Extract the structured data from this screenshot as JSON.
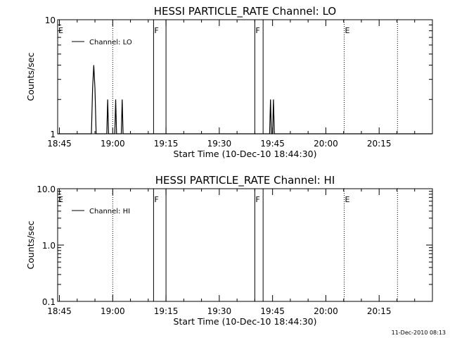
{
  "footer": {
    "timestamp": "11-Dec-2010 08:13"
  },
  "chart_data": [
    {
      "type": "line",
      "title": "HESSI PARTICLE_RATE Channel: LO",
      "xlabel": "Start Time (10-Dec-10 18:44:30)",
      "ylabel": "Counts/sec",
      "yscale": "log",
      "ylim": [
        1,
        10
      ],
      "xlim": [
        "18:44:30",
        "20:30:00"
      ],
      "x_ticks": [
        "18:45",
        "19:00",
        "19:15",
        "19:30",
        "19:45",
        "20:00",
        "20:15"
      ],
      "y_ticks": [
        "1",
        "10"
      ],
      "grid": false,
      "legend": {
        "entries": [
          "Channel: LO"
        ],
        "position": "top-left"
      },
      "series": [
        {
          "name": "Channel: LO",
          "points": [
            [
              "18:44:30",
              1
            ],
            [
              "18:54:00",
              1
            ],
            [
              "18:54:20",
              2.5
            ],
            [
              "18:54:40",
              4.0
            ],
            [
              "18:55:00",
              2.5
            ],
            [
              "18:55:20",
              1
            ],
            [
              "18:58:20",
              1
            ],
            [
              "18:58:35",
              2.0
            ],
            [
              "18:58:50",
              1
            ],
            [
              "19:00:35",
              1
            ],
            [
              "19:00:50",
              2.0
            ],
            [
              "19:01:05",
              1
            ],
            [
              "19:02:25",
              1
            ],
            [
              "19:02:40",
              2.0
            ],
            [
              "19:02:55",
              1
            ],
            [
              "19:11:30",
              1
            ],
            [
              "19:44:10",
              1
            ],
            [
              "19:44:25",
              2.0
            ],
            [
              "19:44:40",
              1
            ],
            [
              "19:45:00",
              1
            ],
            [
              "19:45:15",
              2.0
            ],
            [
              "19:45:30",
              1
            ],
            [
              "20:30:00",
              1
            ]
          ]
        }
      ],
      "flag_lines": [
        {
          "time": "18:44:30",
          "label": "E",
          "style": "dotted"
        },
        {
          "time": "19:00:00",
          "label": "",
          "style": "dotted"
        },
        {
          "time": "19:11:30",
          "label": "F",
          "style": "solid"
        },
        {
          "time": "19:15:00",
          "label": "",
          "style": "solid"
        },
        {
          "time": "19:40:00",
          "label": "F",
          "style": "solid"
        },
        {
          "time": "19:42:20",
          "label": "",
          "style": "solid"
        },
        {
          "time": "20:05:10",
          "label": "E",
          "style": "dotted"
        },
        {
          "time": "20:20:10",
          "label": "",
          "style": "dotted"
        }
      ]
    },
    {
      "type": "line",
      "title": "HESSI PARTICLE_RATE Channel: HI",
      "xlabel": "Start Time (10-Dec-10 18:44:30)",
      "ylabel": "Counts/sec",
      "yscale": "log",
      "ylim": [
        0.1,
        10
      ],
      "xlim": [
        "18:44:30",
        "20:30:00"
      ],
      "x_ticks": [
        "18:45",
        "19:00",
        "19:15",
        "19:30",
        "19:45",
        "20:00",
        "20:15"
      ],
      "y_ticks": [
        "0.1",
        "1.0",
        "10.0"
      ],
      "grid": false,
      "legend": {
        "entries": [
          "Channel: HI"
        ],
        "position": "top-left"
      },
      "series": [
        {
          "name": "Channel: HI",
          "points": []
        }
      ],
      "flag_lines": [
        {
          "time": "18:44:30",
          "label": "E",
          "style": "dotted"
        },
        {
          "time": "19:00:00",
          "label": "",
          "style": "dotted"
        },
        {
          "time": "19:11:30",
          "label": "F",
          "style": "solid"
        },
        {
          "time": "19:15:00",
          "label": "",
          "style": "solid"
        },
        {
          "time": "19:40:00",
          "label": "F",
          "style": "solid"
        },
        {
          "time": "19:42:20",
          "label": "",
          "style": "solid"
        },
        {
          "time": "20:05:10",
          "label": "E",
          "style": "dotted"
        },
        {
          "time": "20:20:10",
          "label": "",
          "style": "dotted"
        }
      ]
    }
  ]
}
